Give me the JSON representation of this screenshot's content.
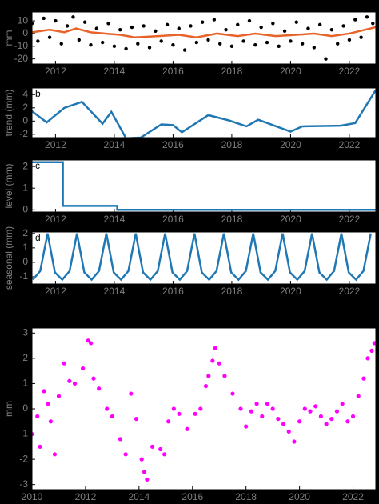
{
  "chart_data": [
    {
      "type": "line",
      "ylabel": "mm",
      "xlim": [
        2011.2,
        2022.9
      ],
      "ylim": [
        -24,
        17
      ],
      "xticks": [
        2012,
        2014,
        2016,
        2018,
        2020,
        2022
      ],
      "yticks": [
        -20,
        -10,
        0,
        10
      ],
      "series": [
        {
          "mode": "markers",
          "color": "#000000",
          "x": [
            2011.2,
            2011.4,
            2011.6,
            2011.8,
            2012.0,
            2012.2,
            2012.4,
            2012.6,
            2012.8,
            2013.0,
            2013.2,
            2013.4,
            2013.6,
            2013.8,
            2014.0,
            2014.2,
            2014.4,
            2014.6,
            2014.8,
            2015.0,
            2015.2,
            2015.4,
            2015.6,
            2015.8,
            2016.0,
            2016.2,
            2016.4,
            2016.6,
            2016.8,
            2017.0,
            2017.2,
            2017.4,
            2017.6,
            2017.8,
            2018.0,
            2018.2,
            2018.4,
            2018.6,
            2018.8,
            2019.0,
            2019.2,
            2019.4,
            2019.6,
            2019.8,
            2020.0,
            2020.2,
            2020.4,
            2020.6,
            2020.8,
            2021.0,
            2021.2,
            2021.4,
            2021.6,
            2021.8,
            2022.0,
            2022.2,
            2022.4,
            2022.6,
            2022.8
          ],
          "values": [
            8,
            -6,
            12,
            -3,
            10,
            -8,
            6,
            13,
            -5,
            9,
            -9,
            4,
            -7,
            8,
            -10,
            3,
            -12,
            5,
            -8,
            6,
            -11,
            2,
            -6,
            7,
            -9,
            4,
            -13,
            6,
            -7,
            9,
            -5,
            11,
            -8,
            3,
            -10,
            7,
            -6,
            10,
            -9,
            5,
            -7,
            8,
            -10,
            2,
            -6,
            9,
            -8,
            4,
            -11,
            7,
            -20,
            3,
            -8,
            6,
            -5,
            11,
            -3,
            13,
            8
          ]
        },
        {
          "mode": "lines",
          "color": "#e8632a",
          "x": [
            2011.2,
            2011.8,
            2012.3,
            2012.7,
            2013.2,
            2013.7,
            2014.2,
            2014.7,
            2015.5,
            2016.2,
            2016.8,
            2017.5,
            2018.2,
            2018.8,
            2019.5,
            2020.2,
            2020.8,
            2021.4,
            2022.0,
            2022.9
          ],
          "values": [
            1,
            3,
            1,
            4,
            1,
            0,
            -1,
            -3,
            -2,
            -1,
            -3,
            0,
            -2,
            0,
            -2,
            -1,
            0,
            -2,
            0,
            5
          ]
        }
      ]
    },
    {
      "type": "line",
      "panel_label": "b",
      "ylabel": "trend (mm)",
      "xlim": [
        2011.2,
        2022.9
      ],
      "ylim": [
        -2.5,
        5
      ],
      "xticks": [
        2012,
        2014,
        2016,
        2018,
        2020,
        2022
      ],
      "yticks": [
        -2,
        0,
        2,
        4
      ],
      "series": [
        {
          "mode": "lines",
          "color": "#1f77b4",
          "x": [
            2011.2,
            2011.7,
            2012.3,
            2012.9,
            2013.6,
            2013.9,
            2014.4,
            2014.9,
            2015.6,
            2016.0,
            2016.3,
            2017.2,
            2017.9,
            2018.5,
            2018.9,
            2020.0,
            2020.4,
            2021.7,
            2022.2,
            2022.9
          ],
          "values": [
            1.5,
            -0.2,
            2,
            2.9,
            -0.4,
            1.4,
            -2.6,
            -2.5,
            -0.5,
            -0.6,
            -1.7,
            0.9,
            0.1,
            -0.8,
            0.2,
            -1.6,
            -0.8,
            -0.7,
            -0.3,
            4.7
          ]
        }
      ]
    },
    {
      "type": "line",
      "panel_label": "c",
      "ylabel": "level (mm)",
      "xlim": [
        2011.2,
        2022.9
      ],
      "ylim": [
        -0.1,
        2.3
      ],
      "xticks": [
        2012,
        2014,
        2016,
        2018,
        2020,
        2022
      ],
      "yticks": [
        0,
        1,
        2
      ],
      "series": [
        {
          "mode": "lines",
          "color": "#1f77b4",
          "x": [
            2011.2,
            2012.25,
            2012.25,
            2014.1,
            2014.1,
            2022.9
          ],
          "values": [
            2.2,
            2.2,
            0.18,
            0.18,
            0,
            0
          ]
        }
      ]
    },
    {
      "type": "line",
      "panel_label": "d",
      "ylabel": "seasonal (mm)",
      "xlim": [
        2011.2,
        2022.9
      ],
      "ylim": [
        -1.5,
        2.1
      ],
      "xticks": [
        2012,
        2014,
        2016,
        2018,
        2020,
        2022
      ],
      "yticks": [
        -1,
        0,
        1,
        2
      ],
      "series": [
        {
          "mode": "lines",
          "color": "#1f77b4",
          "x": [
            2011.23,
            2011.48,
            2011.73,
            2011.98,
            2012.23,
            2012.48,
            2012.73,
            2012.98,
            2013.23,
            2013.48,
            2013.73,
            2013.98,
            2014.23,
            2014.48,
            2014.73,
            2014.98,
            2015.23,
            2015.48,
            2015.73,
            2015.98,
            2016.23,
            2016.48,
            2016.73,
            2016.98,
            2017.23,
            2017.48,
            2017.73,
            2017.98,
            2018.23,
            2018.48,
            2018.73,
            2018.98,
            2019.23,
            2019.48,
            2019.73,
            2019.98,
            2020.23,
            2020.48,
            2020.73,
            2020.98,
            2021.23,
            2021.48,
            2021.73,
            2021.98,
            2022.23,
            2022.48,
            2022.73
          ],
          "values": [
            -1.2,
            -0.6,
            2,
            -0.7,
            -1.2,
            -0.6,
            2,
            -0.7,
            -1.2,
            -0.6,
            2,
            -0.7,
            -1.2,
            -0.6,
            2,
            -0.7,
            -1.2,
            -0.6,
            2,
            -0.7,
            -1.2,
            -0.6,
            2,
            -0.7,
            -1.2,
            -0.6,
            2,
            -0.7,
            -1.2,
            -0.6,
            2,
            -0.7,
            -1.2,
            -0.6,
            2,
            -0.7,
            -1.2,
            -0.6,
            2,
            -0.7,
            -1.2,
            -0.6,
            2,
            -0.7,
            -1.2,
            -0.6,
            2
          ]
        }
      ]
    },
    {
      "type": "line",
      "ylabel": "mm",
      "xlim": [
        2010,
        2022.85
      ],
      "ylim": [
        -3.2,
        3.2
      ],
      "xticks": [
        2010,
        2012,
        2014,
        2016,
        2018,
        2020,
        2022
      ],
      "yticks": [
        -3,
        -2,
        -1,
        0,
        1,
        2,
        3
      ],
      "series": [
        {
          "mode": "markers",
          "color": "#ff00ff",
          "x": [
            2010.0,
            2010.2,
            2010.3,
            2010.45,
            2010.6,
            2010.7,
            2010.85,
            2011.0,
            2011.2,
            2011.4,
            2011.6,
            2011.9,
            2012.1,
            2012.2,
            2012.3,
            2012.5,
            2012.8,
            2013.0,
            2013.3,
            2013.5,
            2013.7,
            2013.9,
            2014.1,
            2014.2,
            2014.3,
            2014.5,
            2014.8,
            2014.95,
            2015.1,
            2015.3,
            2015.5,
            2015.8,
            2016.1,
            2016.3,
            2016.5,
            2016.6,
            2016.75,
            2016.85,
            2017.0,
            2017.2,
            2017.5,
            2017.8,
            2018.0,
            2018.2,
            2018.4,
            2018.6,
            2018.8,
            2019.0,
            2019.2,
            2019.4,
            2019.6,
            2019.8,
            2020.0,
            2020.2,
            2020.4,
            2020.6,
            2020.8,
            2021.0,
            2021.2,
            2021.4,
            2021.6,
            2021.8,
            2022.0,
            2022.2,
            2022.4,
            2022.55,
            2022.7,
            2022.8
          ],
          "values": [
            -1,
            -0.3,
            -1.5,
            0.7,
            0.2,
            -0.5,
            -1.8,
            0.5,
            1.8,
            1.1,
            1.0,
            1.6,
            2.7,
            2.6,
            1.2,
            0.8,
            0.0,
            -0.3,
            -1.2,
            -1.8,
            0.6,
            -0.4,
            -2.0,
            -2.5,
            -2.8,
            -1.5,
            -1.6,
            -1.8,
            -0.5,
            0.0,
            -0.2,
            -0.8,
            -0.2,
            0.0,
            0.9,
            1.3,
            1.9,
            2.4,
            1.8,
            1.3,
            0.6,
            0.0,
            -0.7,
            -0.1,
            0.2,
            -0.3,
            0.2,
            0.0,
            -0.4,
            -0.6,
            -0.9,
            -1.3,
            -0.5,
            0.0,
            -0.1,
            0.1,
            -0.3,
            -0.6,
            -0.4,
            -0.1,
            0.2,
            -0.5,
            -0.3,
            0.5,
            1.2,
            2.0,
            2.3,
            2.6
          ]
        }
      ]
    }
  ]
}
